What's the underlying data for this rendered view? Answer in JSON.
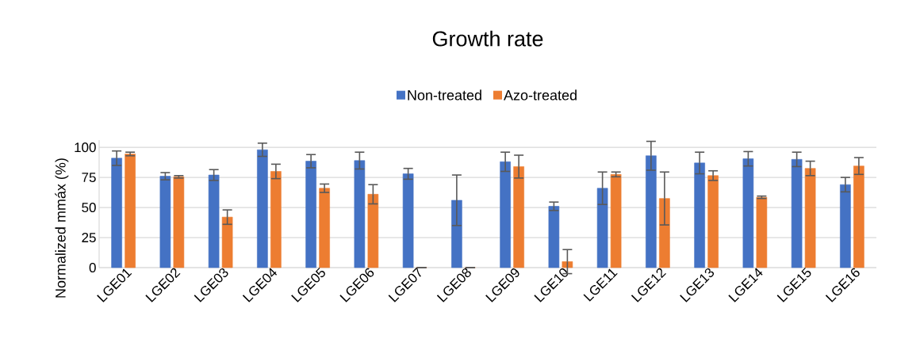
{
  "chart_data": {
    "type": "bar",
    "title": "Growth rate",
    "ylabel": "Normalized mmáx (%)",
    "categories": [
      "LGE01",
      "LGE02",
      "LGE03",
      "LGE04",
      "LGE05",
      "LGE06",
      "LGE07",
      "LGE08",
      "LGE09",
      "LGE10",
      "LGE11",
      "LGE12",
      "LGE13",
      "LGE14",
      "LGE15",
      "LGE16"
    ],
    "series": [
      {
        "name": "Non-treated",
        "color": "#4472c4",
        "values": [
          91,
          76,
          77,
          98,
          88.5,
          89,
          78,
          56,
          88,
          51,
          66,
          93,
          87,
          90.5,
          90,
          69
        ],
        "errors": [
          6,
          3,
          4.5,
          5.5,
          5.5,
          7,
          4.5,
          21,
          8,
          3.5,
          13.5,
          12,
          9,
          6,
          6,
          6
        ]
      },
      {
        "name": "Azo-treated",
        "color": "#ed7d31",
        "values": [
          94.5,
          75.5,
          42,
          80,
          66,
          61,
          0,
          0,
          84,
          5,
          77.5,
          57.5,
          76.5,
          58.5,
          82.5,
          84.5
        ],
        "errors": [
          1.5,
          1,
          6,
          6,
          3.5,
          8,
          null,
          null,
          9.5,
          10,
          2,
          22,
          4,
          1,
          6,
          7
        ]
      }
    ],
    "ylim": [
      0,
      106
    ],
    "yticks": [
      0,
      25,
      50,
      75,
      100
    ],
    "grid": "y",
    "legend": "top"
  }
}
